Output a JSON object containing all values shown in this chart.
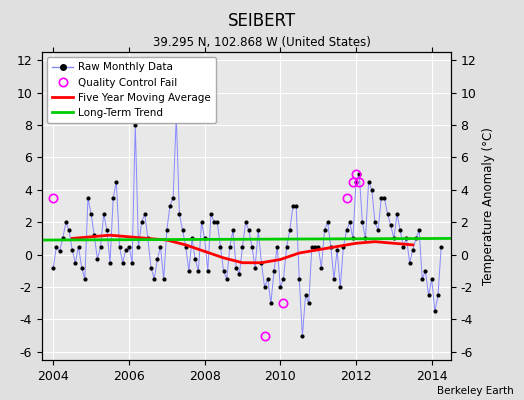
{
  "title": "SEIBERT",
  "subtitle": "39.295 N, 102.868 W (United States)",
  "ylabel_right": "Temperature Anomaly (°C)",
  "credit": "Berkeley Earth",
  "xlim": [
    2003.7,
    2014.5
  ],
  "ylim": [
    -6.5,
    12.5
  ],
  "yticks": [
    -6,
    -4,
    -2,
    0,
    2,
    4,
    6,
    8,
    10,
    12
  ],
  "xticks": [
    2004,
    2006,
    2008,
    2010,
    2012,
    2014
  ],
  "bg_color": "#e0e0e0",
  "plot_bg_color": "#e8e8e8",
  "raw_color": "#8888ff",
  "dot_color": "#000000",
  "qc_color": "#ff00ff",
  "moving_avg_color": "#ff0000",
  "trend_color": "#00cc00",
  "times": [
    2004.0,
    2004.083,
    2004.167,
    2004.25,
    2004.333,
    2004.417,
    2004.5,
    2004.583,
    2004.667,
    2004.75,
    2004.833,
    2004.917,
    2005.0,
    2005.083,
    2005.167,
    2005.25,
    2005.333,
    2005.417,
    2005.5,
    2005.583,
    2005.667,
    2005.75,
    2005.833,
    2005.917,
    2006.0,
    2006.083,
    2006.167,
    2006.25,
    2006.333,
    2006.417,
    2006.5,
    2006.583,
    2006.667,
    2006.75,
    2006.833,
    2006.917,
    2007.0,
    2007.083,
    2007.167,
    2007.25,
    2007.333,
    2007.417,
    2007.5,
    2007.583,
    2007.667,
    2007.75,
    2007.833,
    2007.917,
    2008.0,
    2008.083,
    2008.167,
    2008.25,
    2008.333,
    2008.417,
    2008.5,
    2008.583,
    2008.667,
    2008.75,
    2008.833,
    2008.917,
    2009.0,
    2009.083,
    2009.167,
    2009.25,
    2009.333,
    2009.417,
    2009.5,
    2009.583,
    2009.667,
    2009.75,
    2009.833,
    2009.917,
    2010.0,
    2010.083,
    2010.167,
    2010.25,
    2010.333,
    2010.417,
    2010.5,
    2010.583,
    2010.667,
    2010.75,
    2010.833,
    2010.917,
    2011.0,
    2011.083,
    2011.167,
    2011.25,
    2011.333,
    2011.417,
    2011.5,
    2011.583,
    2011.667,
    2011.75,
    2011.833,
    2011.917,
    2012.0,
    2012.083,
    2012.167,
    2012.25,
    2012.333,
    2012.417,
    2012.5,
    2012.583,
    2012.667,
    2012.75,
    2012.833,
    2012.917,
    2013.0,
    2013.083,
    2013.167,
    2013.25,
    2013.333,
    2013.417,
    2013.5,
    2013.583,
    2013.667,
    2013.75,
    2013.833,
    2013.917,
    2014.0,
    2014.083,
    2014.167,
    2014.25
  ],
  "values": [
    -0.8,
    0.5,
    0.2,
    1.0,
    2.0,
    1.5,
    0.3,
    -0.5,
    0.5,
    -0.8,
    -1.5,
    3.5,
    2.5,
    1.2,
    -0.3,
    0.5,
    2.5,
    1.5,
    -0.5,
    3.5,
    4.5,
    0.5,
    -0.5,
    0.3,
    0.5,
    -0.5,
    8.0,
    0.5,
    2.0,
    2.5,
    1.0,
    -0.8,
    -1.5,
    -0.3,
    0.5,
    -1.5,
    1.5,
    3.0,
    3.5,
    8.5,
    2.5,
    1.5,
    0.5,
    -1.0,
    1.0,
    -0.3,
    -1.0,
    2.0,
    1.0,
    -1.0,
    2.5,
    2.0,
    2.0,
    0.5,
    -1.0,
    -1.5,
    0.5,
    1.5,
    -0.8,
    -1.2,
    0.5,
    2.0,
    1.5,
    0.5,
    -0.8,
    1.5,
    -0.5,
    -2.0,
    -1.5,
    -3.0,
    -1.0,
    0.5,
    -2.0,
    -1.5,
    0.5,
    1.5,
    3.0,
    3.0,
    -1.5,
    -5.0,
    -2.5,
    -3.0,
    0.5,
    0.5,
    0.5,
    -0.8,
    1.5,
    2.0,
    0.5,
    -1.5,
    0.3,
    -2.0,
    0.5,
    1.5,
    2.0,
    1.0,
    4.5,
    5.0,
    2.0,
    1.0,
    4.5,
    4.0,
    2.0,
    1.5,
    3.5,
    3.5,
    2.5,
    1.8,
    1.0,
    2.5,
    1.5,
    0.5,
    1.0,
    -0.5,
    0.3,
    1.0,
    1.5,
    -1.5,
    -1.0,
    -2.5,
    -1.5,
    -3.5,
    -2.5,
    0.5
  ],
  "qc_fail_times": [
    2004.0,
    2009.583,
    2010.083,
    2011.75,
    2011.917,
    2012.0,
    2012.083
  ],
  "qc_fail_values": [
    3.5,
    -5.0,
    -3.0,
    3.5,
    4.5,
    5.0,
    4.5
  ],
  "moving_avg_times": [
    2004.5,
    2005.0,
    2005.5,
    2006.0,
    2006.5,
    2007.0,
    2007.5,
    2008.0,
    2008.5,
    2009.0,
    2009.5,
    2010.0,
    2010.5,
    2011.0,
    2011.5,
    2012.0,
    2012.5,
    2013.0,
    2013.5
  ],
  "moving_avg_values": [
    1.0,
    1.1,
    1.2,
    1.1,
    1.0,
    0.9,
    0.6,
    0.2,
    -0.2,
    -0.5,
    -0.5,
    -0.3,
    0.1,
    0.3,
    0.5,
    0.7,
    0.8,
    0.7,
    0.6
  ],
  "trend_times": [
    2003.7,
    2014.5
  ],
  "trend_values": [
    0.9,
    1.0
  ]
}
